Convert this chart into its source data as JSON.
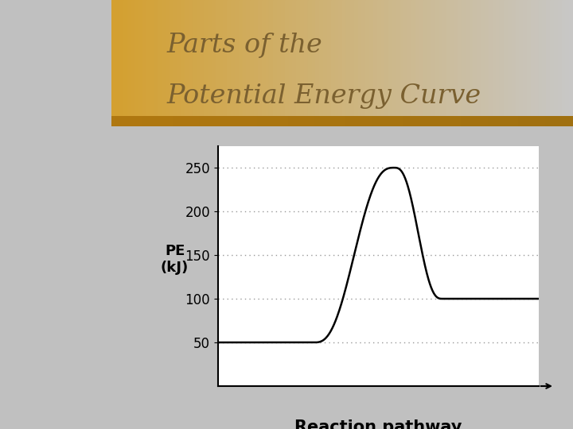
{
  "title_line1": "Parts of the",
  "title_line2": "Potential Energy Curve",
  "xlabel": "Reaction pathway",
  "ylabel_line1": "PE",
  "ylabel_line2": "(kJ)",
  "yticks": [
    50,
    100,
    150,
    200,
    250
  ],
  "ylim": [
    0,
    275
  ],
  "xlim": [
    0,
    10
  ],
  "curve_color": "#000000",
  "curve_linewidth": 1.8,
  "grid_color": "#999999",
  "bg_left": "#d4a030",
  "bg_header_start": "#d4a030",
  "bg_header_end": "#c8c8c8",
  "bg_chart_box": "#ffffff",
  "bg_main": "#c0c0c0",
  "border_stripe_color": "#b07820",
  "title_color": "#7a6030",
  "title_fontsize": 24,
  "tick_fontsize": 12,
  "xlabel_fontsize": 15,
  "ylabel_fontsize": 13
}
